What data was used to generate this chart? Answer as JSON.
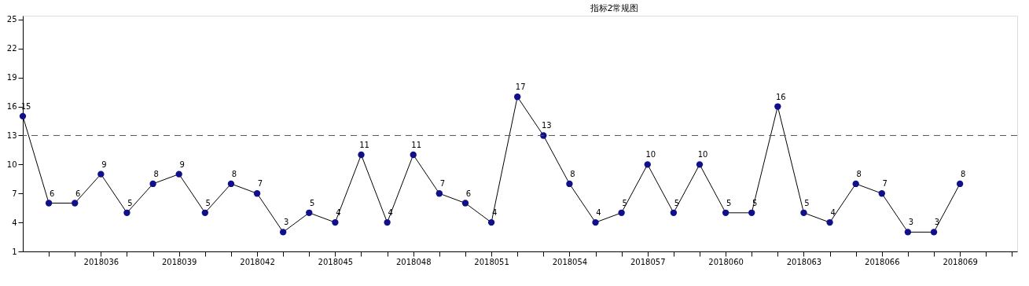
{
  "chart_data": {
    "type": "line",
    "title": "指标2常规图",
    "x": [
      2018033,
      2018034,
      2018035,
      2018036,
      2018037,
      2018038,
      2018039,
      2018040,
      2018041,
      2018042,
      2018043,
      2018044,
      2018045,
      2018046,
      2018047,
      2018048,
      2018049,
      2018050,
      2018051,
      2018052,
      2018053,
      2018054,
      2018055,
      2018056,
      2018057,
      2018058,
      2018059,
      2018060,
      2018061,
      2018062,
      2018063,
      2018064,
      2018065,
      2018066,
      2018067,
      2018068,
      2018069
    ],
    "series": [
      {
        "color": "#10108c",
        "values": [
          15,
          6,
          6,
          9,
          5,
          8,
          9,
          5,
          8,
          7,
          3,
          5,
          4,
          11,
          4,
          11,
          7,
          6,
          4,
          17,
          13,
          8,
          4,
          5,
          10,
          5,
          10,
          5,
          5,
          16,
          5,
          4,
          8,
          7,
          3,
          3,
          8
        ]
      }
    ],
    "xlim": [
      2018033,
      2018071.2
    ],
    "xticks": [
      {
        "value": 2018034,
        "label": null
      },
      {
        "value": 2018035,
        "label": null
      },
      2018036,
      {
        "value": 2018037,
        "label": null
      },
      {
        "value": 2018038,
        "label": null
      },
      2018039,
      {
        "value": 2018040,
        "label": null
      },
      {
        "value": 2018041,
        "label": null
      },
      2018042,
      {
        "value": 2018043,
        "label": null
      },
      {
        "value": 2018044,
        "label": null
      },
      2018045,
      {
        "value": 2018046,
        "label": null
      },
      {
        "value": 2018047,
        "label": null
      },
      2018048,
      {
        "value": 2018049,
        "label": null
      },
      {
        "value": 2018050,
        "label": null
      },
      2018051,
      {
        "value": 2018052,
        "label": null
      },
      {
        "value": 2018053,
        "label": null
      },
      2018054,
      {
        "value": 2018055,
        "label": null
      },
      {
        "value": 2018056,
        "label": null
      },
      2018057,
      {
        "value": 2018058,
        "label": null
      },
      {
        "value": 2018059,
        "label": null
      },
      2018060,
      {
        "value": 2018061,
        "label": null
      },
      {
        "value": 2018062,
        "label": null
      },
      2018063,
      {
        "value": 2018064,
        "label": null
      },
      {
        "value": 2018065,
        "label": null
      },
      2018066,
      {
        "value": 2018067,
        "label": null
      },
      {
        "value": 2018068,
        "label": null
      },
      2018069,
      {
        "value": 2018070,
        "label": null
      },
      {
        "value": 2018071,
        "label": null
      }
    ],
    "ylim": [
      1,
      25.4
    ],
    "yticks": [
      1,
      4,
      7,
      10,
      13,
      16,
      19,
      22,
      25
    ],
    "ref_lines": [
      {
        "axis": "y",
        "value": 13,
        "color": "#555555",
        "line_style": "dashed"
      }
    ],
    "grid": false,
    "marker": "circle",
    "line_style": "solid",
    "data_labels": true
  }
}
